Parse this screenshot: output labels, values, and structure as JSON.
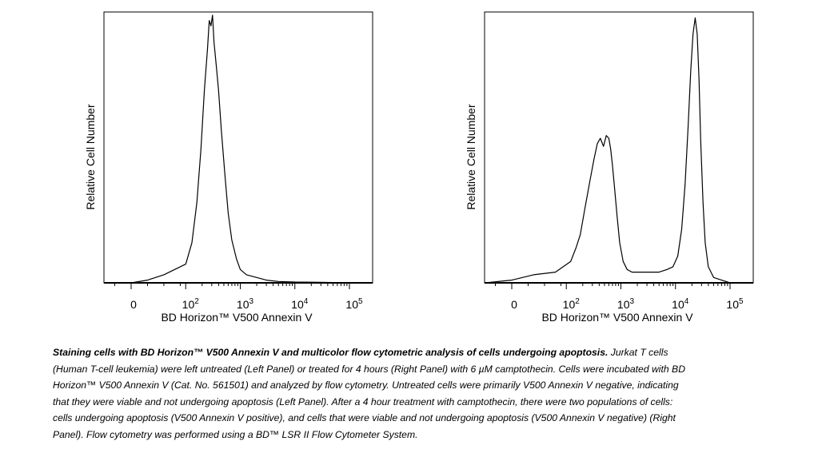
{
  "chart_data": [
    {
      "type": "area",
      "panel": "left",
      "xlabel": "BD Horizon™ V500 Annexin V",
      "ylabel": "Relative Cell Number",
      "x_scale": "biexponential",
      "x_ticks": [
        {
          "value": 0,
          "base": "0",
          "exp": ""
        },
        {
          "value": 100,
          "base": "10",
          "exp": "2"
        },
        {
          "value": 1000,
          "base": "10",
          "exp": "3"
        },
        {
          "value": 10000,
          "base": "10",
          "exp": "4"
        },
        {
          "value": 100000,
          "base": "10",
          "exp": "5"
        }
      ],
      "series": [
        {
          "x": [
            -10,
            0,
            30,
            60,
            100,
            130,
            160,
            190,
            220,
            250,
            270,
            290,
            310,
            330,
            360,
            400,
            450,
            520,
            600,
            700,
            850,
            1000,
            1300,
            2000,
            3000,
            5000,
            10000,
            30000,
            100000
          ],
          "y": [
            0.0,
            0.0,
            0.01,
            0.03,
            0.07,
            0.15,
            0.3,
            0.5,
            0.72,
            0.87,
            0.98,
            0.96,
            1.0,
            0.9,
            0.82,
            0.72,
            0.57,
            0.41,
            0.26,
            0.16,
            0.09,
            0.05,
            0.03,
            0.02,
            0.01,
            0.005,
            0.003,
            0.002,
            0.0
          ]
        }
      ]
    },
    {
      "type": "area",
      "panel": "right",
      "xlabel": "BD Horizon™ V500 Annexin V",
      "ylabel": "Relative Cell Number",
      "x_scale": "biexponential",
      "x_ticks": [
        {
          "value": 0,
          "base": "0",
          "exp": ""
        },
        {
          "value": 100,
          "base": "10",
          "exp": "2"
        },
        {
          "value": 1000,
          "base": "10",
          "exp": "3"
        },
        {
          "value": 10000,
          "base": "10",
          "exp": "4"
        },
        {
          "value": 100000,
          "base": "10",
          "exp": "5"
        }
      ],
      "series": [
        {
          "x": [
            -10,
            0,
            40,
            80,
            120,
            150,
            180,
            220,
            270,
            320,
            370,
            420,
            480,
            540,
            600,
            650,
            700,
            760,
            850,
            950,
            1100,
            1300,
            1600,
            2000,
            2600,
            3500,
            5000,
            7000,
            9000,
            11000,
            13000,
            15000,
            17000,
            19000,
            21000,
            23000,
            25000,
            27000,
            29000,
            32000,
            35000,
            40000,
            50000,
            70000,
            100000
          ],
          "y": [
            0.0,
            0.01,
            0.03,
            0.04,
            0.08,
            0.13,
            0.18,
            0.28,
            0.38,
            0.46,
            0.52,
            0.54,
            0.51,
            0.55,
            0.54,
            0.5,
            0.44,
            0.36,
            0.25,
            0.15,
            0.08,
            0.05,
            0.04,
            0.04,
            0.04,
            0.04,
            0.04,
            0.05,
            0.06,
            0.1,
            0.2,
            0.37,
            0.58,
            0.79,
            0.93,
            0.99,
            0.93,
            0.76,
            0.53,
            0.3,
            0.15,
            0.06,
            0.02,
            0.01,
            0.0
          ]
        }
      ]
    }
  ],
  "caption": {
    "title": "Staining cells with BD Horizon™ V500 Annexin V and multicolor flow cytometric analysis of cells undergoing apoptosis.",
    "body": " Jurkat T cells (Human T-cell leukemia) were left untreated (Left Panel) or treated for 4 hours (Right Panel) with 6 µM camptothecin. Cells were incubated with BD Horizon™ V500 Annexin V (Cat. No. 561501) and analyzed by flow cytometry. Untreated cells were primarily V500 Annexin V negative, indicating that they were viable and not undergoing apoptosis (Left Panel). After a 4 hour treatment with camptothecin, there were two populations of cells: cells undergoing apoptosis (V500 Annexin V positive), and cells that were viable and not undergoing apoptosis (V500 Annexin V negative) (Right Panel). Flow cytometry was performed using a BD™ LSR II Flow Cytometer System."
  }
}
